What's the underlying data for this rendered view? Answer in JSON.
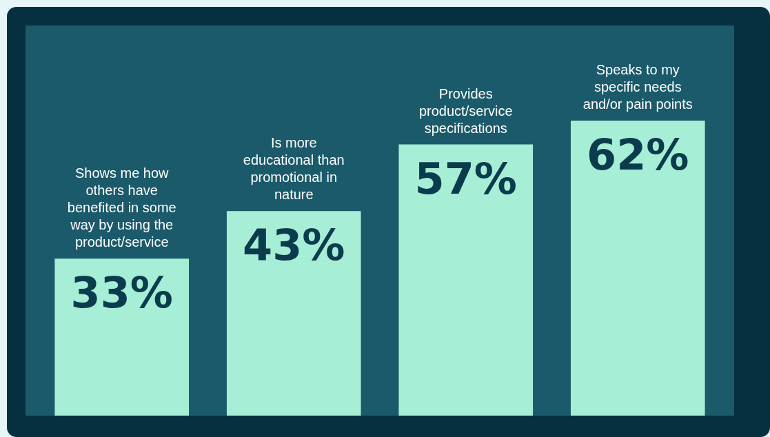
{
  "chart_data": {
    "type": "bar",
    "categories": [
      "Shows me how others have benefited in some way by using the product/service",
      "Is more educational than promotional in nature",
      "Provides product/service specifications",
      "Speaks to my specific needs and/or pain points"
    ],
    "values": [
      33,
      43,
      57,
      62
    ],
    "value_labels": [
      "33%",
      "43%",
      "57%",
      "62%"
    ],
    "color": "#a6eed6"
  }
}
